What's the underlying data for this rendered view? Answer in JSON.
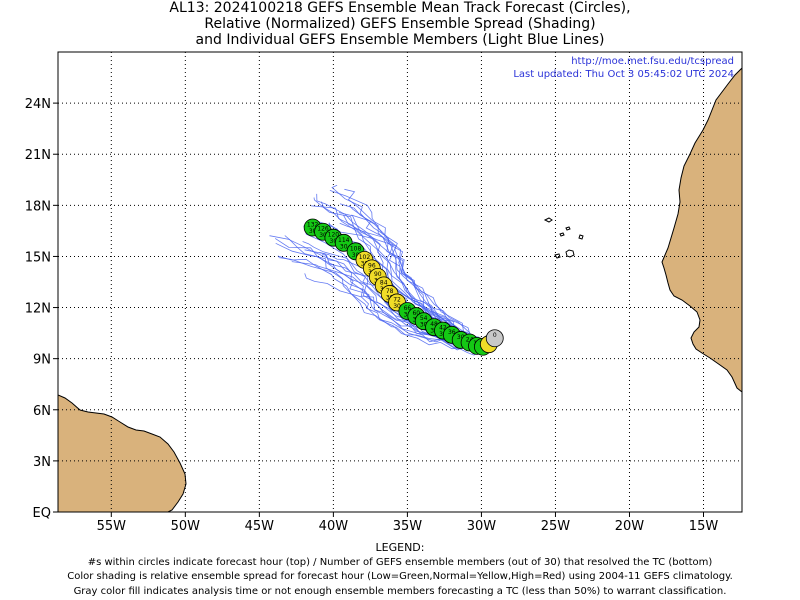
{
  "title": {
    "line1": "AL13: 2024100218 GEFS Ensemble Mean Track Forecast (Circles),",
    "line2": "Relative (Normalized) GEFS Ensemble Spread (Shading)",
    "line3": "and Individual GEFS Ensemble Members (Light Blue Lines)"
  },
  "map_info": {
    "url": "http://moe.met.fsu.edu/tcspread",
    "updated": "Last updated: Thu Oct  3 05:45:02 UTC 2024"
  },
  "axes": {
    "x_ticks": [
      {
        "lon": -55,
        "label": "55W"
      },
      {
        "lon": -50,
        "label": "50W"
      },
      {
        "lon": -45,
        "label": "45W"
      },
      {
        "lon": -40,
        "label": "40W"
      },
      {
        "lon": -35,
        "label": "35W"
      },
      {
        "lon": -30,
        "label": "30W"
      },
      {
        "lon": -25,
        "label": "25W"
      },
      {
        "lon": -20,
        "label": "20W"
      },
      {
        "lon": -15,
        "label": "15W"
      }
    ],
    "y_ticks": [
      {
        "lat": 0,
        "label": "EQ"
      },
      {
        "lat": 3,
        "label": "3N"
      },
      {
        "lat": 6,
        "label": "6N"
      },
      {
        "lat": 9,
        "label": "9N"
      },
      {
        "lat": 12,
        "label": "12N"
      },
      {
        "lat": 15,
        "label": "15N"
      },
      {
        "lat": 18,
        "label": "18N"
      },
      {
        "lat": 21,
        "label": "21N"
      },
      {
        "lat": 24,
        "label": "24N"
      }
    ],
    "lon_range": [
      -58.6,
      -12.4
    ],
    "lat_range": [
      0,
      27
    ]
  },
  "colors": {
    "land": "#d9b27c",
    "ocean": "#ffffff",
    "member_tracks": "#4a64f0",
    "low_spread": "#14c814",
    "normal_spread": "#f0dc28",
    "analysis": "#c8c8c8"
  },
  "mean_track": [
    {
      "hour": 0,
      "members": null,
      "spread": "analysis",
      "lon": -29.1,
      "lat": 10.2
    },
    {
      "hour": 6,
      "members": null,
      "spread": "normal",
      "lon": -29.5,
      "lat": 9.85
    },
    {
      "hour": 12,
      "members": null,
      "spread": "low",
      "lon": -29.9,
      "lat": 9.7
    },
    {
      "hour": 18,
      "members": null,
      "spread": "low",
      "lon": -30.3,
      "lat": 9.75
    },
    {
      "hour": 24,
      "members": null,
      "spread": "low",
      "lon": -30.8,
      "lat": 9.95
    },
    {
      "hour": 30,
      "members": null,
      "spread": "low",
      "lon": -31.4,
      "lat": 10.1
    },
    {
      "hour": 36,
      "members": null,
      "spread": "low",
      "lon": -32.0,
      "lat": 10.4
    },
    {
      "hour": 42,
      "members": 30,
      "spread": "low",
      "lon": -32.6,
      "lat": 10.65
    },
    {
      "hour": 48,
      "members": 30,
      "spread": "low",
      "lon": -33.2,
      "lat": 10.85
    },
    {
      "hour": 54,
      "members": 30,
      "spread": "low",
      "lon": -33.9,
      "lat": 11.2
    },
    {
      "hour": 60,
      "members": 30,
      "spread": "low",
      "lon": -34.4,
      "lat": 11.5
    },
    {
      "hour": 66,
      "members": 30,
      "spread": "low",
      "lon": -35.0,
      "lat": 11.8
    },
    {
      "hour": 72,
      "members": 30,
      "spread": "normal",
      "lon": -35.7,
      "lat": 12.3
    },
    {
      "hour": 78,
      "members": 30,
      "spread": "normal",
      "lon": -36.2,
      "lat": 12.8
    },
    {
      "hour": 84,
      "members": 30,
      "spread": "normal",
      "lon": -36.6,
      "lat": 13.3
    },
    {
      "hour": 90,
      "members": 30,
      "spread": "normal",
      "lon": -37.0,
      "lat": 13.8
    },
    {
      "hour": 96,
      "members": 30,
      "spread": "normal",
      "lon": -37.4,
      "lat": 14.3
    },
    {
      "hour": 102,
      "members": 30,
      "spread": "normal",
      "lon": -37.9,
      "lat": 14.8
    },
    {
      "hour": 108,
      "members": 30,
      "spread": "low",
      "lon": -38.5,
      "lat": 15.3
    },
    {
      "hour": 114,
      "members": 30,
      "spread": "low",
      "lon": -39.3,
      "lat": 15.8
    },
    {
      "hour": 120,
      "members": 30,
      "spread": "low",
      "lon": -40.0,
      "lat": 16.1
    },
    {
      "hour": 126,
      "members": 30,
      "spread": "low",
      "lon": -40.7,
      "lat": 16.45
    },
    {
      "hour": 132,
      "members": 30,
      "spread": "low",
      "lon": -41.4,
      "lat": 16.7
    }
  ],
  "legend": {
    "heading": "LEGEND:",
    "line1": "#s within circles indicate forecast hour (top) / Number of GEFS ensemble members (out of 30) that resolved the TC (bottom)",
    "line2": "Color shading is relative ensemble spread for forecast hour (Low=Green,Normal=Yellow,High=Red) using 2004-11 GEFS climatology.",
    "line3": "Gray color fill indicates analysis time or not enough ensemble members forecasting a TC (less than 50%) to warrant classification."
  }
}
